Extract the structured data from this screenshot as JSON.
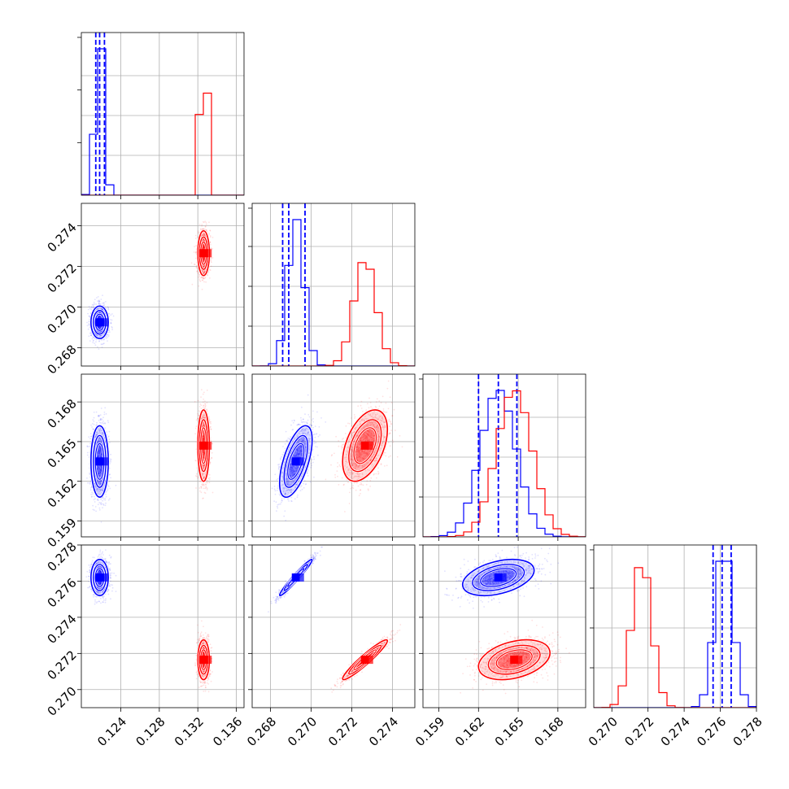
{
  "chart_data": {
    "type": "scatter",
    "title": "",
    "layout": "corner-plot-4x4",
    "grid": true,
    "colors": {
      "blue": "#0000ff",
      "red": "#ff0000"
    },
    "parameters": [
      {
        "ticks": [
          0.124,
          0.128,
          0.132,
          0.136
        ],
        "tick_labels": [
          "0.124",
          "0.128",
          "0.132",
          "0.136"
        ],
        "range": [
          0.1199,
          0.1368
        ]
      },
      {
        "ticks": [
          0.268,
          0.27,
          0.272,
          0.274
        ],
        "tick_labels": [
          "0.268",
          "0.270",
          "0.272",
          "0.274"
        ],
        "range": [
          0.2671,
          0.2751
        ]
      },
      {
        "ticks": [
          0.159,
          0.162,
          0.165,
          0.168
        ],
        "tick_labels": [
          "0.159",
          "0.162",
          "0.165",
          "0.168"
        ],
        "range": [
          0.1578,
          0.1701
        ]
      },
      {
        "ticks": [
          0.27,
          0.272,
          0.274,
          0.276,
          0.278
        ],
        "tick_labels": [
          "0.270",
          "0.272",
          "0.274",
          "0.276",
          "0.278"
        ],
        "range": [
          0.269,
          0.278
        ]
      }
    ],
    "series": [
      {
        "color": "#0000ff",
        "means": [
          0.1218,
          0.26925,
          0.1635,
          0.2762
        ],
        "stds": [
          0.00045,
          0.0004,
          0.00135,
          0.0005
        ],
        "quantiles": [
          [
            0.1214,
            0.1218,
            0.1223
          ],
          [
            0.2686,
            0.2689,
            0.2697
          ],
          [
            0.162,
            0.1635,
            0.1649
          ],
          [
            0.2756,
            0.2761,
            0.2766
          ]
        ],
        "correlations": [
          [
            0,
            1,
            0.0
          ],
          [
            0,
            2,
            0.0
          ],
          [
            0,
            3,
            0.0
          ],
          [
            1,
            2,
            0.6
          ],
          [
            1,
            3,
            0.97
          ],
          [
            2,
            3,
            0.4
          ]
        ]
      },
      {
        "color": "#ff0000",
        "means": [
          0.1326,
          0.27265,
          0.1647,
          0.27165
        ],
        "stds": [
          0.0003,
          0.00055,
          0.00135,
          0.00055
        ],
        "quantiles": [],
        "correlations": [
          [
            0,
            1,
            0.0
          ],
          [
            0,
            2,
            0.0
          ],
          [
            0,
            3,
            0.0
          ],
          [
            1,
            2,
            0.45
          ],
          [
            1,
            3,
            0.95
          ],
          [
            2,
            3,
            0.35
          ]
        ]
      }
    ]
  }
}
